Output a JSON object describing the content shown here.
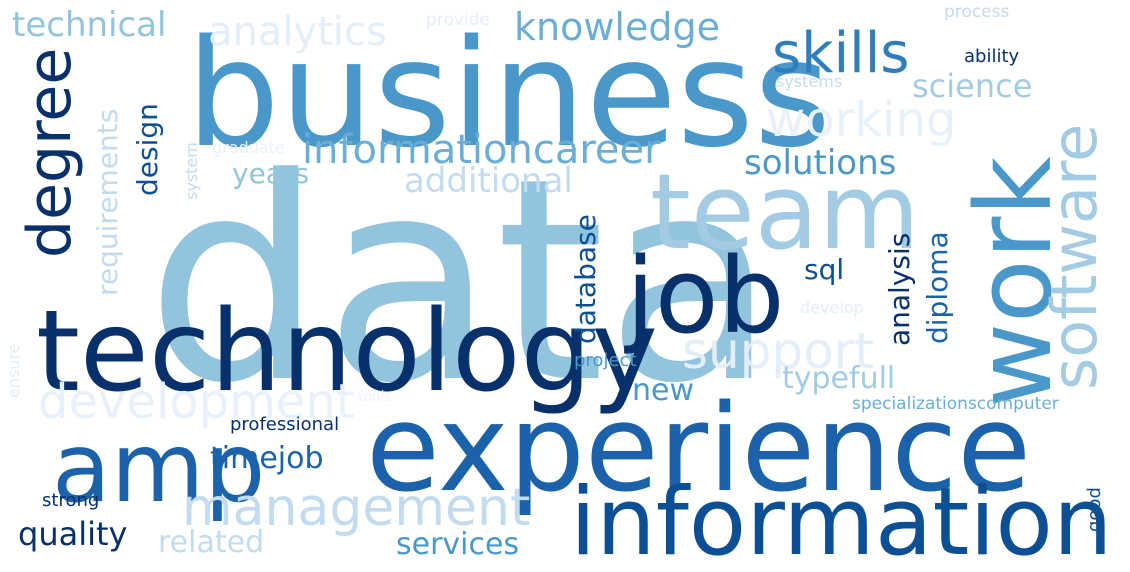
{
  "palette": {
    "darkest": "#08306b",
    "dark": "#08519c",
    "medium_dark": "#2171b5",
    "medium": "#4292c6",
    "medium_light": "#6baed6",
    "light": "#9ecae1",
    "lighter": "#c6dbef",
    "lightest": "#deebf7",
    "palest": "#eff3ff"
  },
  "words": [
    {
      "text": "data",
      "color": "#93c4de"
    },
    {
      "text": "business",
      "color": "#4a97c9"
    },
    {
      "text": "experience",
      "color": "#1b62aa"
    },
    {
      "text": "technology",
      "color": "#08306b"
    },
    {
      "text": "information",
      "color": "#0d4f94"
    },
    {
      "text": "team",
      "color": "#a3cbe3"
    },
    {
      "text": "job",
      "color": "#08306b"
    },
    {
      "text": "work",
      "color": "#4a97c9"
    },
    {
      "text": "software",
      "color": "#a3cbe3"
    },
    {
      "text": "amp",
      "color": "#1b62aa"
    },
    {
      "text": "skills",
      "color": "#2f7ebc"
    },
    {
      "text": "degree",
      "color": "#08306b"
    },
    {
      "text": "management",
      "color": "#c2dbef"
    },
    {
      "text": "development",
      "color": "#e8f1fa"
    },
    {
      "text": "support",
      "color": "#e3eef8"
    },
    {
      "text": "working",
      "color": "#e8f1fa"
    },
    {
      "text": "analytics",
      "color": "#e3eef8"
    },
    {
      "text": "knowledge",
      "color": "#6aaed6"
    },
    {
      "text": "technical",
      "color": "#93c4de"
    },
    {
      "text": "informationcareer",
      "color": "#6aaed6"
    },
    {
      "text": "additional",
      "color": "#c2dbef"
    },
    {
      "text": "science",
      "color": "#a3cbe3"
    },
    {
      "text": "solutions",
      "color": "#4a97c9"
    },
    {
      "text": "requirements",
      "color": "#c2dbef"
    },
    {
      "text": "design",
      "color": "#0d4f94"
    },
    {
      "text": "years",
      "color": "#93c4de"
    },
    {
      "text": "database",
      "color": "#0d4f94"
    },
    {
      "text": "analysis",
      "color": "#08306b"
    },
    {
      "text": "diploma",
      "color": "#1b62aa"
    },
    {
      "text": "sql",
      "color": "#0d4f94"
    },
    {
      "text": "typefull",
      "color": "#a3cbe3"
    },
    {
      "text": "new",
      "color": "#4a97c9"
    },
    {
      "text": "timejob",
      "color": "#1b62aa"
    },
    {
      "text": "quality",
      "color": "#08306b"
    },
    {
      "text": "related",
      "color": "#c2dbef"
    },
    {
      "text": "services",
      "color": "#4a97c9"
    },
    {
      "text": "professional",
      "color": "#08306b"
    },
    {
      "text": "specializationscomputer",
      "color": "#6aaed6"
    },
    {
      "text": "project",
      "color": "#4a97c9"
    },
    {
      "text": "ability",
      "color": "#08306b"
    },
    {
      "text": "systems",
      "color": "#c2dbef"
    },
    {
      "text": "process",
      "color": "#c2dbef"
    },
    {
      "text": "provide",
      "color": "#e3eef8"
    },
    {
      "text": "graduate",
      "color": "#e8f1fa"
    },
    {
      "text": "system",
      "color": "#c2dbef"
    },
    {
      "text": "develop",
      "color": "#e3eef8"
    },
    {
      "text": "tools",
      "color": "#eff3ff"
    },
    {
      "text": "ensure",
      "color": "#e3eef8"
    },
    {
      "text": "strong",
      "color": "#08306b"
    },
    {
      "text": "good",
      "color": "#0d4f94"
    }
  ]
}
